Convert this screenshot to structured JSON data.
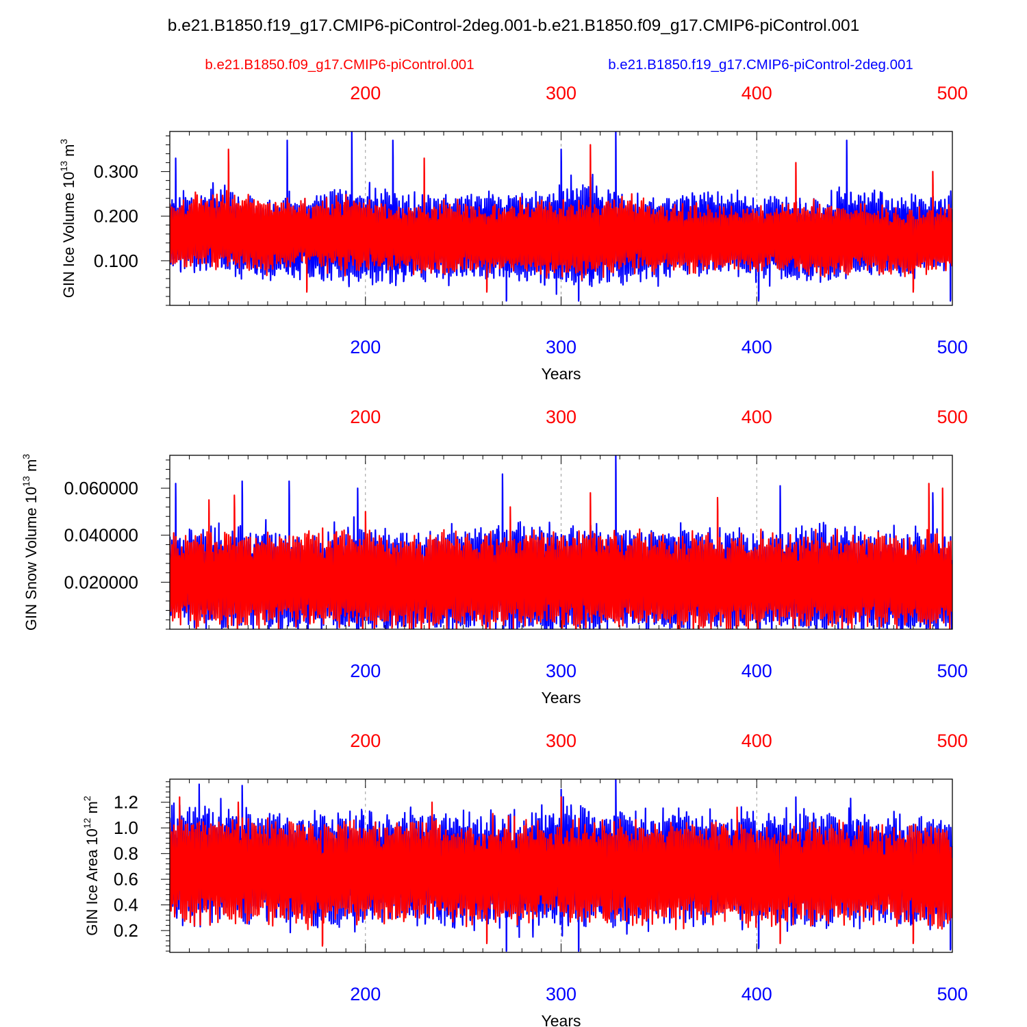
{
  "page_title": "b.e21.B1850.f19_g17.CMIP6-piControl-2deg.001-b.e21.B1850.f09_g17.CMIP6-piControl.001",
  "legend": {
    "red_label": "b.e21.B1850.f09_g17.CMIP6-piControl.001",
    "blue_label": "b.e21.B1850.f19_g17.CMIP6-piControl-2deg.001"
  },
  "colors": {
    "red": "#ff0000",
    "blue": "#0000ff",
    "axis": "#000000",
    "grid": "#999999"
  },
  "chart_data": [
    {
      "type": "line",
      "id": "ice-volume",
      "ylabel_main": "GIN Ice Volume 10",
      "ylabel_exp": "13",
      "ylabel_unit": " m",
      "ylabel_unit_exp": "3",
      "xlabel": "Years",
      "xlim": [
        100,
        500
      ],
      "ylim": [
        0.0,
        0.39
      ],
      "xticks": [
        200,
        300,
        400,
        500
      ],
      "xtick_labels": [
        "200",
        "300",
        "400",
        "500"
      ],
      "yticks": [
        0.1,
        0.2,
        0.3
      ],
      "ytick_labels": [
        "0.100",
        "0.200",
        "0.300"
      ],
      "grid_x": [
        200,
        300,
        400
      ],
      "series": [
        {
          "name": "b.e21.B1850.f19_g17.CMIP6-piControl-2deg.001",
          "color": "blue",
          "x_start": 100,
          "x_end": 500,
          "mean": [
            0.16,
            0.17,
            0.15,
            0.15,
            0.16,
            0.15,
            0.15,
            0.16,
            0.15,
            0.16,
            0.15,
            0.16,
            0.16,
            0.15,
            0.15,
            0.16,
            0.15,
            0.17
          ],
          "amp": [
            0.08,
            0.09,
            0.09,
            0.09,
            0.11,
            0.1,
            0.09,
            0.1,
            0.1,
            0.12,
            0.09,
            0.09,
            0.09,
            0.09,
            0.09,
            0.1,
            0.09,
            0.09
          ],
          "peaks": [
            [
              103,
              0.33
            ],
            [
              160,
              0.37
            ],
            [
              193,
              0.39
            ],
            [
              214,
              0.37
            ],
            [
              300,
              0.35
            ],
            [
              328,
              0.39
            ],
            [
              446,
              0.37
            ]
          ],
          "troughs": [
            [
              272,
              0.01
            ],
            [
              309,
              0.01
            ],
            [
              401,
              0.01
            ],
            [
              499,
              0.01
            ]
          ]
        },
        {
          "name": "b.e21.B1850.f09_g17.CMIP6-piControl.001",
          "color": "red",
          "x_start": 100,
          "x_end": 500,
          "mean": [
            0.16,
            0.17,
            0.16,
            0.16,
            0.16,
            0.15,
            0.15,
            0.15,
            0.15,
            0.15,
            0.16,
            0.15,
            0.15,
            0.15,
            0.15,
            0.15,
            0.14,
            0.15
          ],
          "amp": [
            0.07,
            0.08,
            0.08,
            0.07,
            0.08,
            0.07,
            0.08,
            0.07,
            0.08,
            0.08,
            0.08,
            0.07,
            0.07,
            0.07,
            0.08,
            0.07,
            0.07,
            0.07
          ],
          "peaks": [
            [
              130,
              0.35
            ],
            [
              230,
              0.33
            ],
            [
              315,
              0.36
            ],
            [
              420,
              0.32
            ],
            [
              490,
              0.3
            ]
          ],
          "troughs": [
            [
              170,
              0.03
            ],
            [
              262,
              0.03
            ],
            [
              480,
              0.03
            ]
          ]
        }
      ]
    },
    {
      "type": "line",
      "id": "snow-volume",
      "ylabel_main": "GIN Snow Volume 10",
      "ylabel_exp": "13",
      "ylabel_unit": " m",
      "ylabel_unit_exp": "3",
      "xlabel": "Years",
      "xlim": [
        100,
        500
      ],
      "ylim": [
        0.0,
        0.074
      ],
      "xticks": [
        200,
        300,
        400,
        500
      ],
      "xtick_labels": [
        "200",
        "300",
        "400",
        "500"
      ],
      "yticks": [
        0.02,
        0.04,
        0.06
      ],
      "ytick_labels": [
        "0.020000",
        "0.040000",
        "0.060000"
      ],
      "grid_x": [
        200,
        300,
        400
      ],
      "series": [
        {
          "name": "b.e21.B1850.f19_g17.CMIP6-piControl-2deg.001",
          "color": "blue",
          "x_start": 100,
          "x_end": 500,
          "mean": [
            0.021,
            0.022,
            0.021,
            0.02,
            0.021,
            0.02,
            0.021,
            0.021,
            0.021,
            0.02,
            0.021,
            0.021,
            0.02,
            0.02,
            0.021,
            0.02,
            0.02,
            0.02
          ],
          "amp": [
            0.02,
            0.021,
            0.021,
            0.02,
            0.022,
            0.021,
            0.022,
            0.022,
            0.023,
            0.022,
            0.021,
            0.022,
            0.021,
            0.021,
            0.022,
            0.021,
            0.021,
            0.02
          ],
          "peaks": [
            [
              103,
              0.062
            ],
            [
              137,
              0.063
            ],
            [
              161,
              0.063
            ],
            [
              196,
              0.06
            ],
            [
              270,
              0.066
            ],
            [
              328,
              0.074
            ],
            [
              412,
              0.061
            ],
            [
              490,
              0.058
            ]
          ],
          "troughs": []
        },
        {
          "name": "b.e21.B1850.f09_g17.CMIP6-piControl.001",
          "color": "red",
          "x_start": 100,
          "x_end": 500,
          "mean": [
            0.021,
            0.021,
            0.021,
            0.021,
            0.021,
            0.02,
            0.021,
            0.02,
            0.021,
            0.021,
            0.021,
            0.02,
            0.02,
            0.02,
            0.021,
            0.02,
            0.02,
            0.02
          ],
          "amp": [
            0.019,
            0.02,
            0.019,
            0.019,
            0.02,
            0.019,
            0.02,
            0.019,
            0.02,
            0.02,
            0.019,
            0.019,
            0.019,
            0.019,
            0.019,
            0.019,
            0.019,
            0.019
          ],
          "peaks": [
            [
              120,
              0.055
            ],
            [
              133,
              0.057
            ],
            [
              200,
              0.05
            ],
            [
              274,
              0.052
            ],
            [
              315,
              0.058
            ],
            [
              380,
              0.056
            ],
            [
              488,
              0.062
            ],
            [
              495,
              0.06
            ]
          ],
          "troughs": []
        }
      ]
    },
    {
      "type": "line",
      "id": "ice-area",
      "ylabel_main": "GIN Ice Area 10",
      "ylabel_exp": "12",
      "ylabel_unit": " m",
      "ylabel_unit_exp": "2",
      "xlabel": "Years",
      "xlim": [
        100,
        500
      ],
      "ylim": [
        0.03,
        1.38
      ],
      "xticks": [
        200,
        300,
        400,
        500
      ],
      "xtick_labels": [
        "200",
        "300",
        "400",
        "500"
      ],
      "yticks": [
        0.2,
        0.4,
        0.6,
        0.8,
        1.0,
        1.2
      ],
      "ytick_labels": [
        "0.2",
        "0.4",
        "0.6",
        "0.8",
        "1.0",
        "1.2"
      ],
      "grid_x": [
        200,
        300,
        400
      ],
      "series": [
        {
          "name": "b.e21.B1850.f19_g17.CMIP6-piControl-2deg.001",
          "color": "blue",
          "x_start": 100,
          "x_end": 500,
          "mean": [
            0.7,
            0.74,
            0.68,
            0.66,
            0.68,
            0.7,
            0.68,
            0.66,
            0.68,
            0.7,
            0.66,
            0.7,
            0.68,
            0.68,
            0.66,
            0.68,
            0.67,
            0.66
          ],
          "amp": [
            0.42,
            0.44,
            0.4,
            0.42,
            0.44,
            0.42,
            0.44,
            0.43,
            0.45,
            0.48,
            0.42,
            0.42,
            0.42,
            0.42,
            0.43,
            0.42,
            0.42,
            0.42
          ],
          "peaks": [
            [
              115,
              1.34
            ],
            [
              137,
              1.33
            ],
            [
              300,
              1.3
            ],
            [
              328,
              1.38
            ],
            [
              420,
              1.24
            ],
            [
              448,
              1.23
            ]
          ],
          "troughs": [
            [
              272,
              0.04
            ],
            [
              309,
              0.04
            ],
            [
              401,
              0.06
            ],
            [
              499,
              0.05
            ]
          ]
        },
        {
          "name": "b.e21.B1850.f09_g17.CMIP6-piControl.001",
          "color": "red",
          "x_start": 100,
          "x_end": 500,
          "mean": [
            0.66,
            0.68,
            0.66,
            0.64,
            0.66,
            0.66,
            0.65,
            0.64,
            0.65,
            0.65,
            0.64,
            0.65,
            0.64,
            0.64,
            0.64,
            0.64,
            0.63,
            0.63
          ],
          "amp": [
            0.38,
            0.4,
            0.38,
            0.37,
            0.38,
            0.37,
            0.38,
            0.37,
            0.38,
            0.38,
            0.37,
            0.37,
            0.37,
            0.37,
            0.37,
            0.37,
            0.37,
            0.37
          ],
          "peaks": [
            [
              105,
              1.24
            ],
            [
              135,
              1.2
            ],
            [
              234,
              1.2
            ],
            [
              300,
              1.24
            ],
            [
              390,
              1.16
            ]
          ],
          "troughs": [
            [
              178,
              0.08
            ],
            [
              262,
              0.1
            ],
            [
              412,
              0.1
            ],
            [
              480,
              0.1
            ]
          ]
        }
      ]
    }
  ]
}
